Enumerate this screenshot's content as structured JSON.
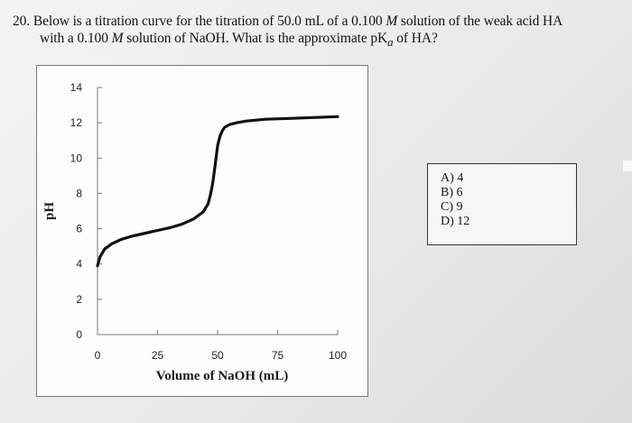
{
  "question": {
    "number": "20.",
    "text_line1_a": "Below is a titration curve for the titration of 50.0 mL of a 0.100 ",
    "molarity_symbol": "M",
    "text_line1_b": " solution of the weak acid HA",
    "text_line2_a": "with a 0.100 ",
    "text_line2_b": " solution of NaOH.  What is the approximate pK",
    "subscript": "a",
    "text_line2_c": " of HA?"
  },
  "choices": [
    {
      "letter": "A)",
      "value": "4"
    },
    {
      "letter": "B)",
      "value": "6"
    },
    {
      "letter": "C)",
      "value": "9"
    },
    {
      "letter": "D)",
      "value": "12"
    }
  ],
  "chart_data": {
    "type": "line",
    "xlabel": "Volume of NaOH (mL)",
    "ylabel": "pH",
    "xlim": [
      0,
      100
    ],
    "ylim": [
      0,
      14
    ],
    "x_ticks": [
      0,
      25,
      50,
      75,
      100
    ],
    "y_ticks": [
      0,
      2,
      4,
      6,
      8,
      10,
      12,
      14
    ],
    "series": [
      {
        "x": [
          0,
          1,
          3,
          6,
          10,
          15,
          20,
          25,
          30,
          35,
          40,
          44,
          46,
          47,
          48,
          49,
          50,
          51,
          52,
          53,
          55,
          58,
          62,
          70,
          80,
          90,
          100
        ],
        "y": [
          3.9,
          4.4,
          4.85,
          5.15,
          5.4,
          5.6,
          5.75,
          5.9,
          6.05,
          6.25,
          6.55,
          6.95,
          7.4,
          7.9,
          8.6,
          9.6,
          10.7,
          11.25,
          11.55,
          11.75,
          11.9,
          12.0,
          12.1,
          12.2,
          12.25,
          12.3,
          12.35
        ]
      }
    ]
  }
}
